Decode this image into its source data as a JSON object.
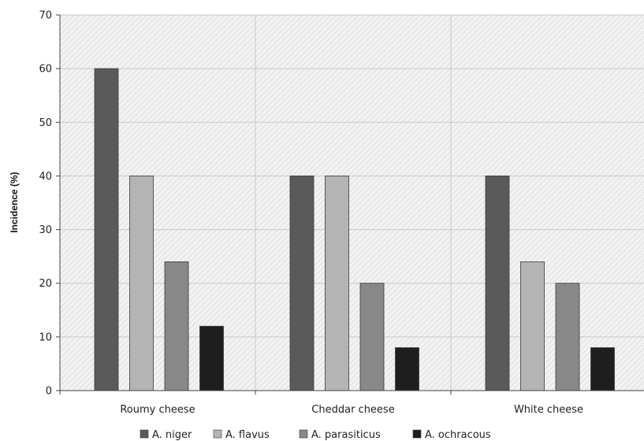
{
  "chart_data": {
    "type": "bar",
    "title": "",
    "xlabel": "",
    "ylabel": "Incidence (%)",
    "ylim": [
      0,
      70
    ],
    "yticks": [
      0,
      10,
      20,
      30,
      40,
      50,
      60,
      70
    ],
    "grid": true,
    "legend_position": "bottom",
    "categories": [
      "Roumy cheese",
      "Cheddar cheese",
      "White cheese"
    ],
    "series": [
      {
        "name": "A. niger",
        "color": "#5a5a5a",
        "values": [
          60,
          40,
          40
        ]
      },
      {
        "name": "A. flavus",
        "color": "#b4b4b4",
        "values": [
          40,
          40,
          24
        ]
      },
      {
        "name": "A. parasiticus",
        "color": "#888888",
        "values": [
          24,
          20,
          20
        ]
      },
      {
        "name": "A. ochracous",
        "color": "#1e1e1e",
        "values": [
          12,
          8,
          8
        ]
      }
    ]
  }
}
